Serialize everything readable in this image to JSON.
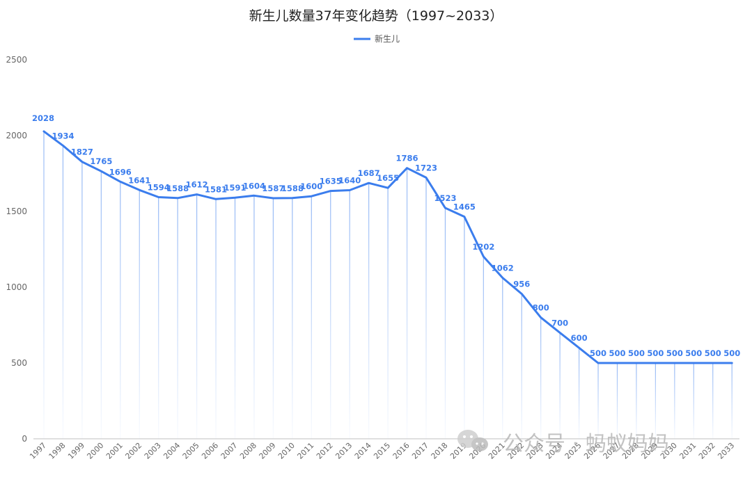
{
  "chart_data": {
    "type": "line",
    "title": "新生儿数量37年变化趋势（1997~2033）",
    "xlabel": "",
    "ylabel": "",
    "ylim": [
      0,
      2500
    ],
    "yticks": [
      0,
      500,
      1000,
      1500,
      2000,
      2500
    ],
    "grid": false,
    "legend_position": "top-center",
    "categories": [
      "1997",
      "1998",
      "1999",
      "2000",
      "2001",
      "2002",
      "2003",
      "2004",
      "2005",
      "2006",
      "2007",
      "2008",
      "2009",
      "2010",
      "2011",
      "2012",
      "2013",
      "2014",
      "2015",
      "2016",
      "2017",
      "2018",
      "2019",
      "2020",
      "2021",
      "2022",
      "2023",
      "2024",
      "2025",
      "2026",
      "2027",
      "2028",
      "2029",
      "2030",
      "2031",
      "2032",
      "2033"
    ],
    "series": [
      {
        "name": "新生儿",
        "color": "#3b7ded",
        "values": [
          2028,
          1934,
          1827,
          1765,
          1696,
          1641,
          1594,
          1588,
          1612,
          1581,
          1591,
          1604,
          1587,
          1588,
          1600,
          1635,
          1640,
          1687,
          1655,
          1786,
          1723,
          1523,
          1465,
          1202,
          1062,
          956,
          800,
          700,
          600,
          500,
          500,
          500,
          500,
          500,
          500,
          500,
          500
        ]
      }
    ]
  },
  "watermark": {
    "text": "公众号 · 蚂蚁妈妈",
    "icon": "wechat-icon"
  }
}
